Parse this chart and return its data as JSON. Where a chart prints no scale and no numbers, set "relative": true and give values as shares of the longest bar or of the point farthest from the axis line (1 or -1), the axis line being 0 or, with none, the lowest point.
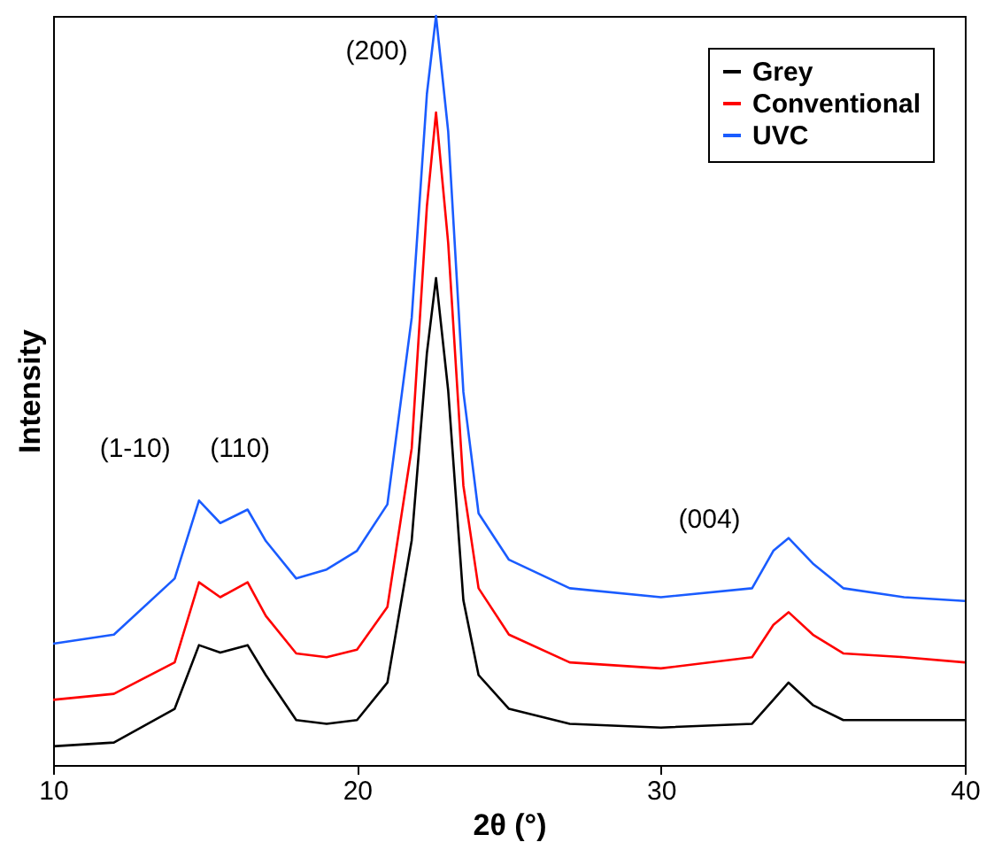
{
  "chart_data": {
    "type": "line",
    "relative": true,
    "xlabel": "2θ (°)",
    "ylabel": "Intensity",
    "xlim": [
      10,
      40
    ],
    "xticks": [
      10,
      20,
      30,
      40
    ],
    "tick_labels": "x",
    "legend": "top right",
    "grid": false,
    "marker": "none",
    "line_style": "solid",
    "x": [
      10,
      12,
      14,
      14.8,
      15.5,
      16.4,
      17,
      18,
      19,
      20,
      21,
      21.8,
      22.3,
      22.6,
      23,
      23.5,
      24,
      25,
      27,
      30,
      33,
      33.7,
      34.2,
      35,
      36,
      38,
      40
    ],
    "series": [
      {
        "name": "Grey",
        "color": "#000000",
        "values": [
          0.025,
          0.03,
          0.075,
          0.16,
          0.15,
          0.16,
          0.12,
          0.06,
          0.055,
          0.06,
          0.11,
          0.3,
          0.55,
          0.65,
          0.5,
          0.22,
          0.12,
          0.075,
          0.055,
          0.05,
          0.055,
          0.087,
          0.11,
          0.08,
          0.06,
          0.06,
          0.06
        ]
      },
      {
        "name": "Conventional",
        "color": "#ff0000",
        "values": [
          0.087,
          0.095,
          0.137,
          0.244,
          0.224,
          0.244,
          0.199,
          0.149,
          0.144,
          0.154,
          0.211,
          0.423,
          0.746,
          0.871,
          0.697,
          0.373,
          0.236,
          0.174,
          0.137,
          0.129,
          0.144,
          0.187,
          0.204,
          0.174,
          0.149,
          0.144,
          0.137
        ]
      },
      {
        "name": "UVC",
        "color": "#1a5cff",
        "values": [
          0.162,
          0.174,
          0.249,
          0.353,
          0.323,
          0.341,
          0.299,
          0.249,
          0.261,
          0.286,
          0.348,
          0.597,
          0.896,
          1,
          0.846,
          0.498,
          0.336,
          0.274,
          0.236,
          0.224,
          0.236,
          0.286,
          0.303,
          0.269,
          0.236,
          0.224,
          0.219
        ]
      }
    ],
    "annotations": [
      "(1-10)",
      "(110)",
      "(200)",
      "(004)"
    ]
  }
}
